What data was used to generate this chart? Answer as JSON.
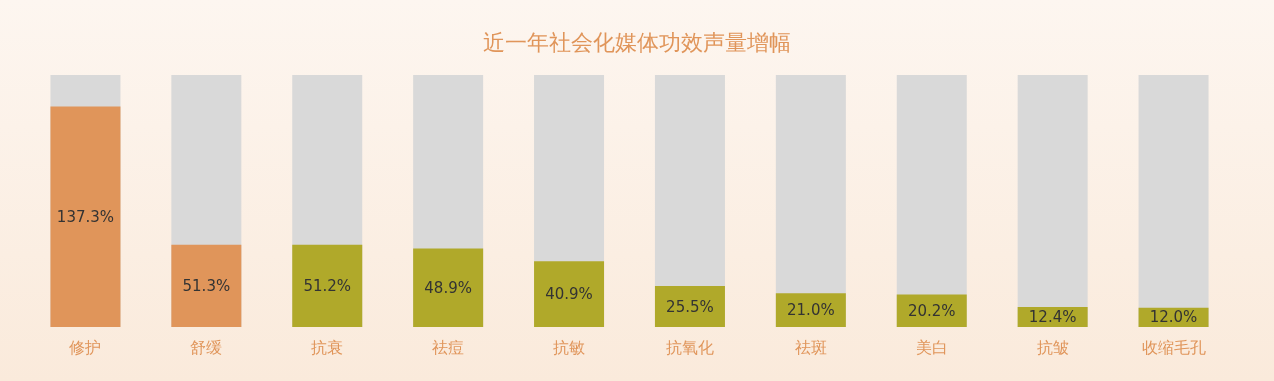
{
  "chart_data": {
    "type": "bar",
    "title": "近一年社会化媒体功效声量增幅",
    "categories": [
      "修护",
      "舒缓",
      "抗衰",
      "祛痘",
      "抗敏",
      "抗氧化",
      "祛斑",
      "美白",
      "抗皱",
      "收缩毛孔"
    ],
    "values": [
      137.3,
      51.3,
      51.2,
      48.9,
      40.9,
      25.5,
      21.0,
      20.2,
      12.4,
      12.0
    ],
    "value_labels": [
      "137.3%",
      "51.3%",
      "51.2%",
      "48.9%",
      "40.9%",
      "25.5%",
      "21.0%",
      "20.2%",
      "12.4%",
      "12.0%"
    ],
    "colors": [
      "#e0955a",
      "#e0955a",
      "#b0a92a",
      "#b0a92a",
      "#b0a92a",
      "#b0a92a",
      "#b0a92a",
      "#b0a92a",
      "#b0a92a",
      "#b0a92a"
    ],
    "ylim": [
      0,
      157
    ],
    "tick_labels": "x"
  }
}
